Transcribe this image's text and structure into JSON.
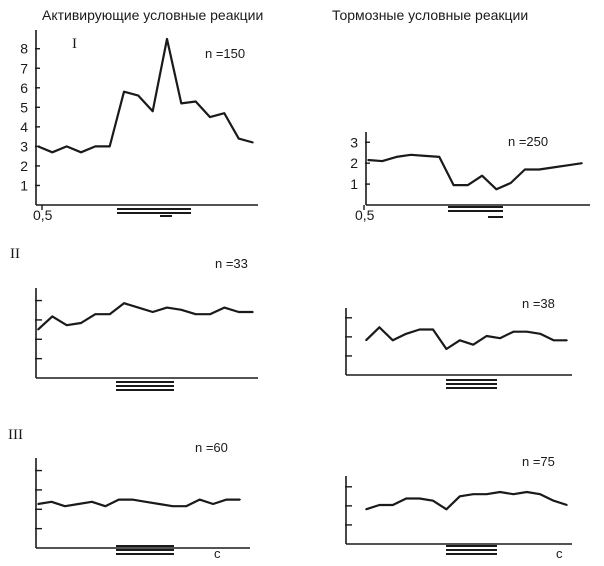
{
  "headings": {
    "left": "Активирующие условные реакции",
    "right": "Тормозные условные реакции"
  },
  "chart_data": [
    {
      "id": "I-left",
      "type": "line",
      "group": "I",
      "n_label": "n =150",
      "x": [
        0,
        1,
        2,
        3,
        4,
        5,
        6,
        7,
        8,
        9,
        10,
        11,
        12,
        13,
        14,
        15
      ],
      "y": [
        3.0,
        2.7,
        3.0,
        2.7,
        3.0,
        3.0,
        5.8,
        5.6,
        4.8,
        8.5,
        5.2,
        5.3,
        4.5,
        4.7,
        3.4,
        3.2
      ],
      "ylim": [
        0,
        8.6
      ],
      "yticks": [
        "1",
        "2",
        "3",
        "4",
        "5",
        "6",
        "7",
        "8"
      ],
      "x_tick_label": "0,5",
      "axis_end_label": ""
    },
    {
      "id": "I-right",
      "type": "line",
      "group": "I",
      "n_label": "n =250",
      "x": [
        0,
        1,
        2,
        3,
        4,
        5,
        6,
        7,
        8,
        9,
        10,
        11,
        12,
        13,
        14,
        15
      ],
      "y": [
        2.15,
        2.1,
        2.3,
        2.4,
        2.35,
        2.3,
        0.95,
        0.95,
        1.4,
        0.75,
        1.05,
        1.7,
        1.7,
        1.8,
        1.9,
        2.0
      ],
      "ylim": [
        0,
        3.3
      ],
      "yticks": [
        "1",
        "2",
        "3"
      ],
      "x_tick_label": "0,5",
      "axis_end_label": ""
    },
    {
      "id": "II-left",
      "type": "line",
      "group": "II",
      "n_label": "n =33",
      "x": [
        0,
        1,
        2,
        3,
        4,
        5,
        6,
        7,
        8,
        9,
        10,
        11,
        12,
        13,
        14,
        15
      ],
      "y": [
        2.2,
        2.8,
        2.4,
        2.5,
        2.9,
        2.9,
        3.4,
        3.2,
        3.0,
        3.2,
        3.1,
        2.9,
        2.9,
        3.2,
        3.0,
        3.0
      ],
      "ylim": [
        0,
        4
      ],
      "yticks": [],
      "x_tick_label": "",
      "axis_end_label": ""
    },
    {
      "id": "II-right",
      "type": "line",
      "group": "II",
      "n_label": "n =38",
      "x": [
        0,
        1,
        2,
        3,
        4,
        5,
        6,
        7,
        8,
        9,
        10,
        11,
        12,
        13,
        14,
        15
      ],
      "y": [
        1.6,
        2.2,
        1.6,
        1.9,
        2.1,
        2.1,
        1.2,
        1.6,
        1.4,
        1.8,
        1.7,
        2.0,
        2.0,
        1.9,
        1.6,
        1.6
      ],
      "ylim": [
        0,
        3
      ],
      "yticks": [],
      "x_tick_label": "",
      "axis_end_label": ""
    },
    {
      "id": "III-left",
      "type": "line",
      "group": "III",
      "n_label": "n =60",
      "x": [
        0,
        1,
        2,
        3,
        4,
        5,
        6,
        7,
        8,
        9,
        10,
        11,
        12,
        13,
        14,
        15
      ],
      "y": [
        2.0,
        2.1,
        1.9,
        2.0,
        2.1,
        1.9,
        2.2,
        2.2,
        2.1,
        2.0,
        1.9,
        1.9,
        2.2,
        2.0,
        2.2,
        2.2
      ],
      "ylim": [
        0,
        4
      ],
      "yticks": [],
      "x_tick_label": "",
      "axis_end_label": "с"
    },
    {
      "id": "III-right",
      "type": "line",
      "group": "III",
      "n_label": "n =75",
      "x": [
        0,
        1,
        2,
        3,
        4,
        5,
        6,
        7,
        8,
        9,
        10,
        11,
        12,
        13,
        14,
        15
      ],
      "y": [
        1.6,
        1.8,
        1.8,
        2.1,
        2.1,
        2.0,
        1.6,
        2.2,
        2.3,
        2.3,
        2.4,
        2.3,
        2.4,
        2.3,
        2.0,
        1.8
      ],
      "ylim": [
        0,
        3
      ],
      "yticks": [],
      "x_tick_label": "",
      "axis_end_label": "с"
    }
  ]
}
